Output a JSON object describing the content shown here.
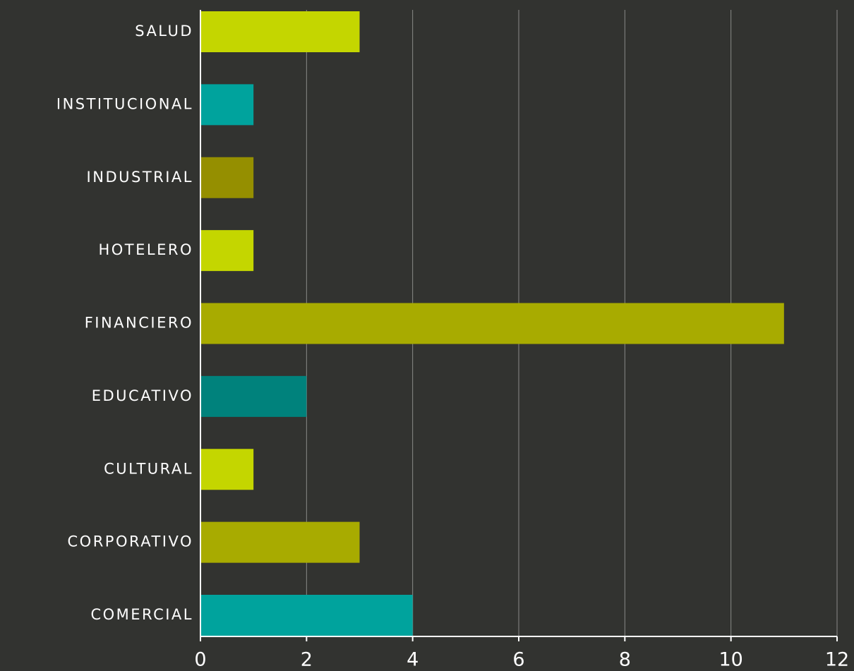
{
  "chart_data": {
    "type": "hbar",
    "categories": [
      "SALUD",
      "INSTITUCIONAL",
      "INDUSTRIAL",
      "HOTELERO",
      "FINANCIERO",
      "EDUCATIVO",
      "CULTURAL",
      "CORPORATIVO",
      "COMERCIAL"
    ],
    "values": [
      3,
      1,
      1,
      1,
      11,
      2,
      1,
      3,
      4
    ],
    "colors": [
      "#c4d600",
      "#00a39d",
      "#958f00",
      "#c4d600",
      "#a8ab00",
      "#00827c",
      "#c4d600",
      "#a8ab00",
      "#00a39d"
    ],
    "xlim": [
      0,
      12
    ],
    "xticks": [
      0,
      2,
      4,
      6,
      8,
      10,
      12
    ],
    "grid": true
  }
}
